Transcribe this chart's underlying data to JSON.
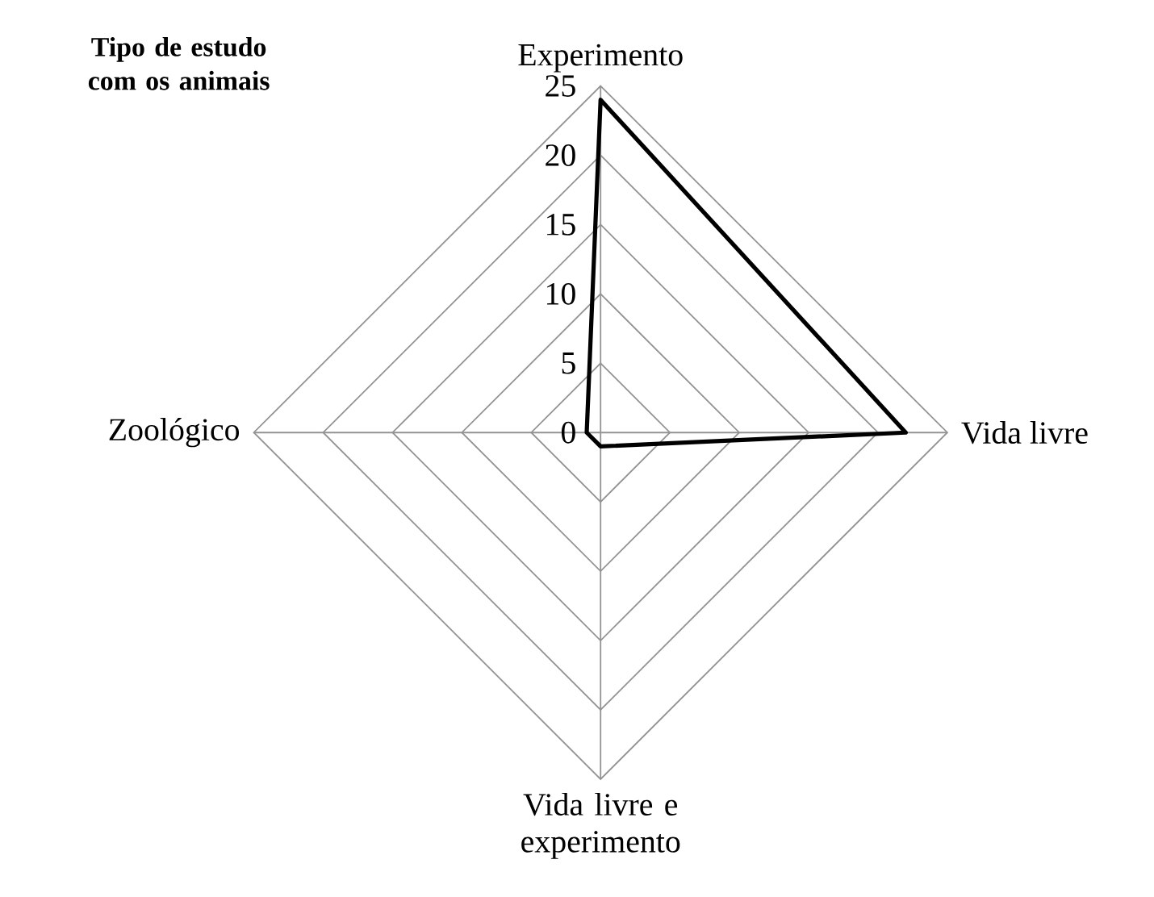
{
  "chart_data": {
    "type": "radar",
    "title": "Tipo de estudo com os animais",
    "categories": [
      "Experimento",
      "Vida livre",
      "Vida livre e experimento",
      "Zoológico"
    ],
    "series": [
      {
        "color": "#000000",
        "values": [
          24,
          22,
          1,
          1
        ]
      }
    ],
    "ylim": [
      0,
      25
    ],
    "yticks": [
      0,
      5,
      10,
      15,
      20,
      25
    ],
    "grid": true
  }
}
